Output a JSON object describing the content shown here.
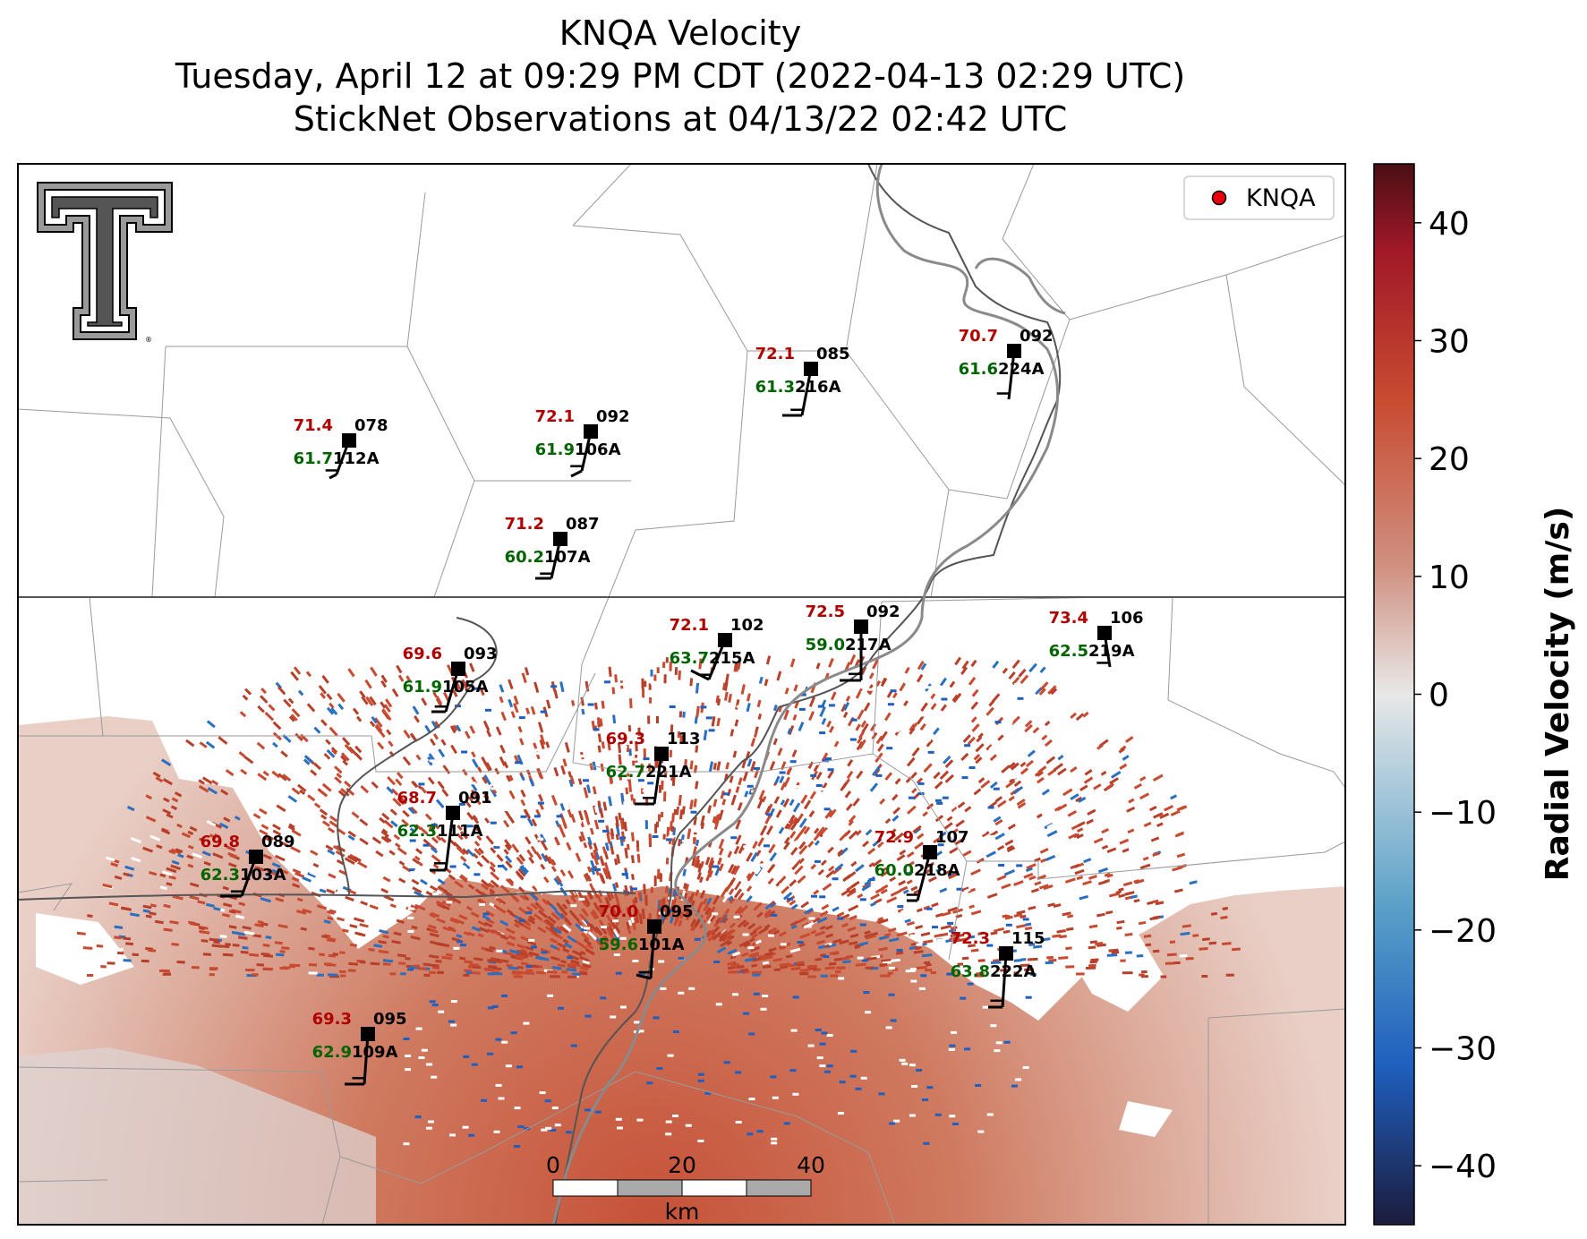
{
  "title": {
    "line1": "KNQA Velocity",
    "line2": "Tuesday, April 12 at 09:29 PM CDT (2022-04-13 02:29 UTC)",
    "line3": "StickNet Observations at 04/13/22 02:42 UTC"
  },
  "legend": {
    "label": "KNQA",
    "marker_color": "#e8000b"
  },
  "colorbar": {
    "label": "Radial Velocity (m/s)",
    "ticks": [
      "40",
      "30",
      "20",
      "10",
      "0",
      "−10",
      "−20",
      "−30",
      "−40"
    ],
    "range": [
      -45,
      45
    ],
    "colors": [
      "#1c1c3c",
      "#1f5fbf",
      "#5aa0c8",
      "#e8e8e8",
      "#d09080",
      "#c84a30",
      "#a01828",
      "#4a0f14"
    ]
  },
  "scalebar": {
    "ticks": [
      "0",
      "20",
      "40"
    ],
    "unit": "km"
  },
  "colors": {
    "temp": "#b00000",
    "dewpoint": "#006400",
    "station": "#000000"
  },
  "stations": [
    {
      "id": "112A",
      "temp": "71.4",
      "dew": "61.7",
      "dir": "078"
    },
    {
      "id": "106A",
      "temp": "72.1",
      "dew": "61.9",
      "dir": "092"
    },
    {
      "id": "216A",
      "temp": "72.1",
      "dew": "61.3",
      "dir": "085"
    },
    {
      "id": "224A",
      "temp": "70.7",
      "dew": "61.6",
      "dir": "092"
    },
    {
      "id": "107A",
      "temp": "71.2",
      "dew": "60.2",
      "dir": "087"
    },
    {
      "id": "215A",
      "temp": "72.1",
      "dew": "63.7",
      "dir": "102"
    },
    {
      "id": "217A",
      "temp": "72.5",
      "dew": "59.0",
      "dir": "092"
    },
    {
      "id": "219A",
      "temp": "73.4",
      "dew": "62.5",
      "dir": "106"
    },
    {
      "id": "105A",
      "temp": "69.6",
      "dew": "61.9",
      "dir": "093"
    },
    {
      "id": "221A",
      "temp": "69.3",
      "dew": "62.7",
      "dir": "113"
    },
    {
      "id": "111A",
      "temp": "68.7",
      "dew": "62.3",
      "dir": "091"
    },
    {
      "id": "103A",
      "temp": "69.8",
      "dew": "62.3",
      "dir": "089"
    },
    {
      "id": "218A",
      "temp": "72.9",
      "dew": "60.0",
      "dir": "107"
    },
    {
      "id": "101A",
      "temp": "70.0",
      "dew": "59.6",
      "dir": "095"
    },
    {
      "id": "222A",
      "temp": "72.3",
      "dew": "63.8",
      "dir": "115"
    },
    {
      "id": "109A",
      "temp": "69.3",
      "dew": "62.9",
      "dir": "095"
    }
  ]
}
